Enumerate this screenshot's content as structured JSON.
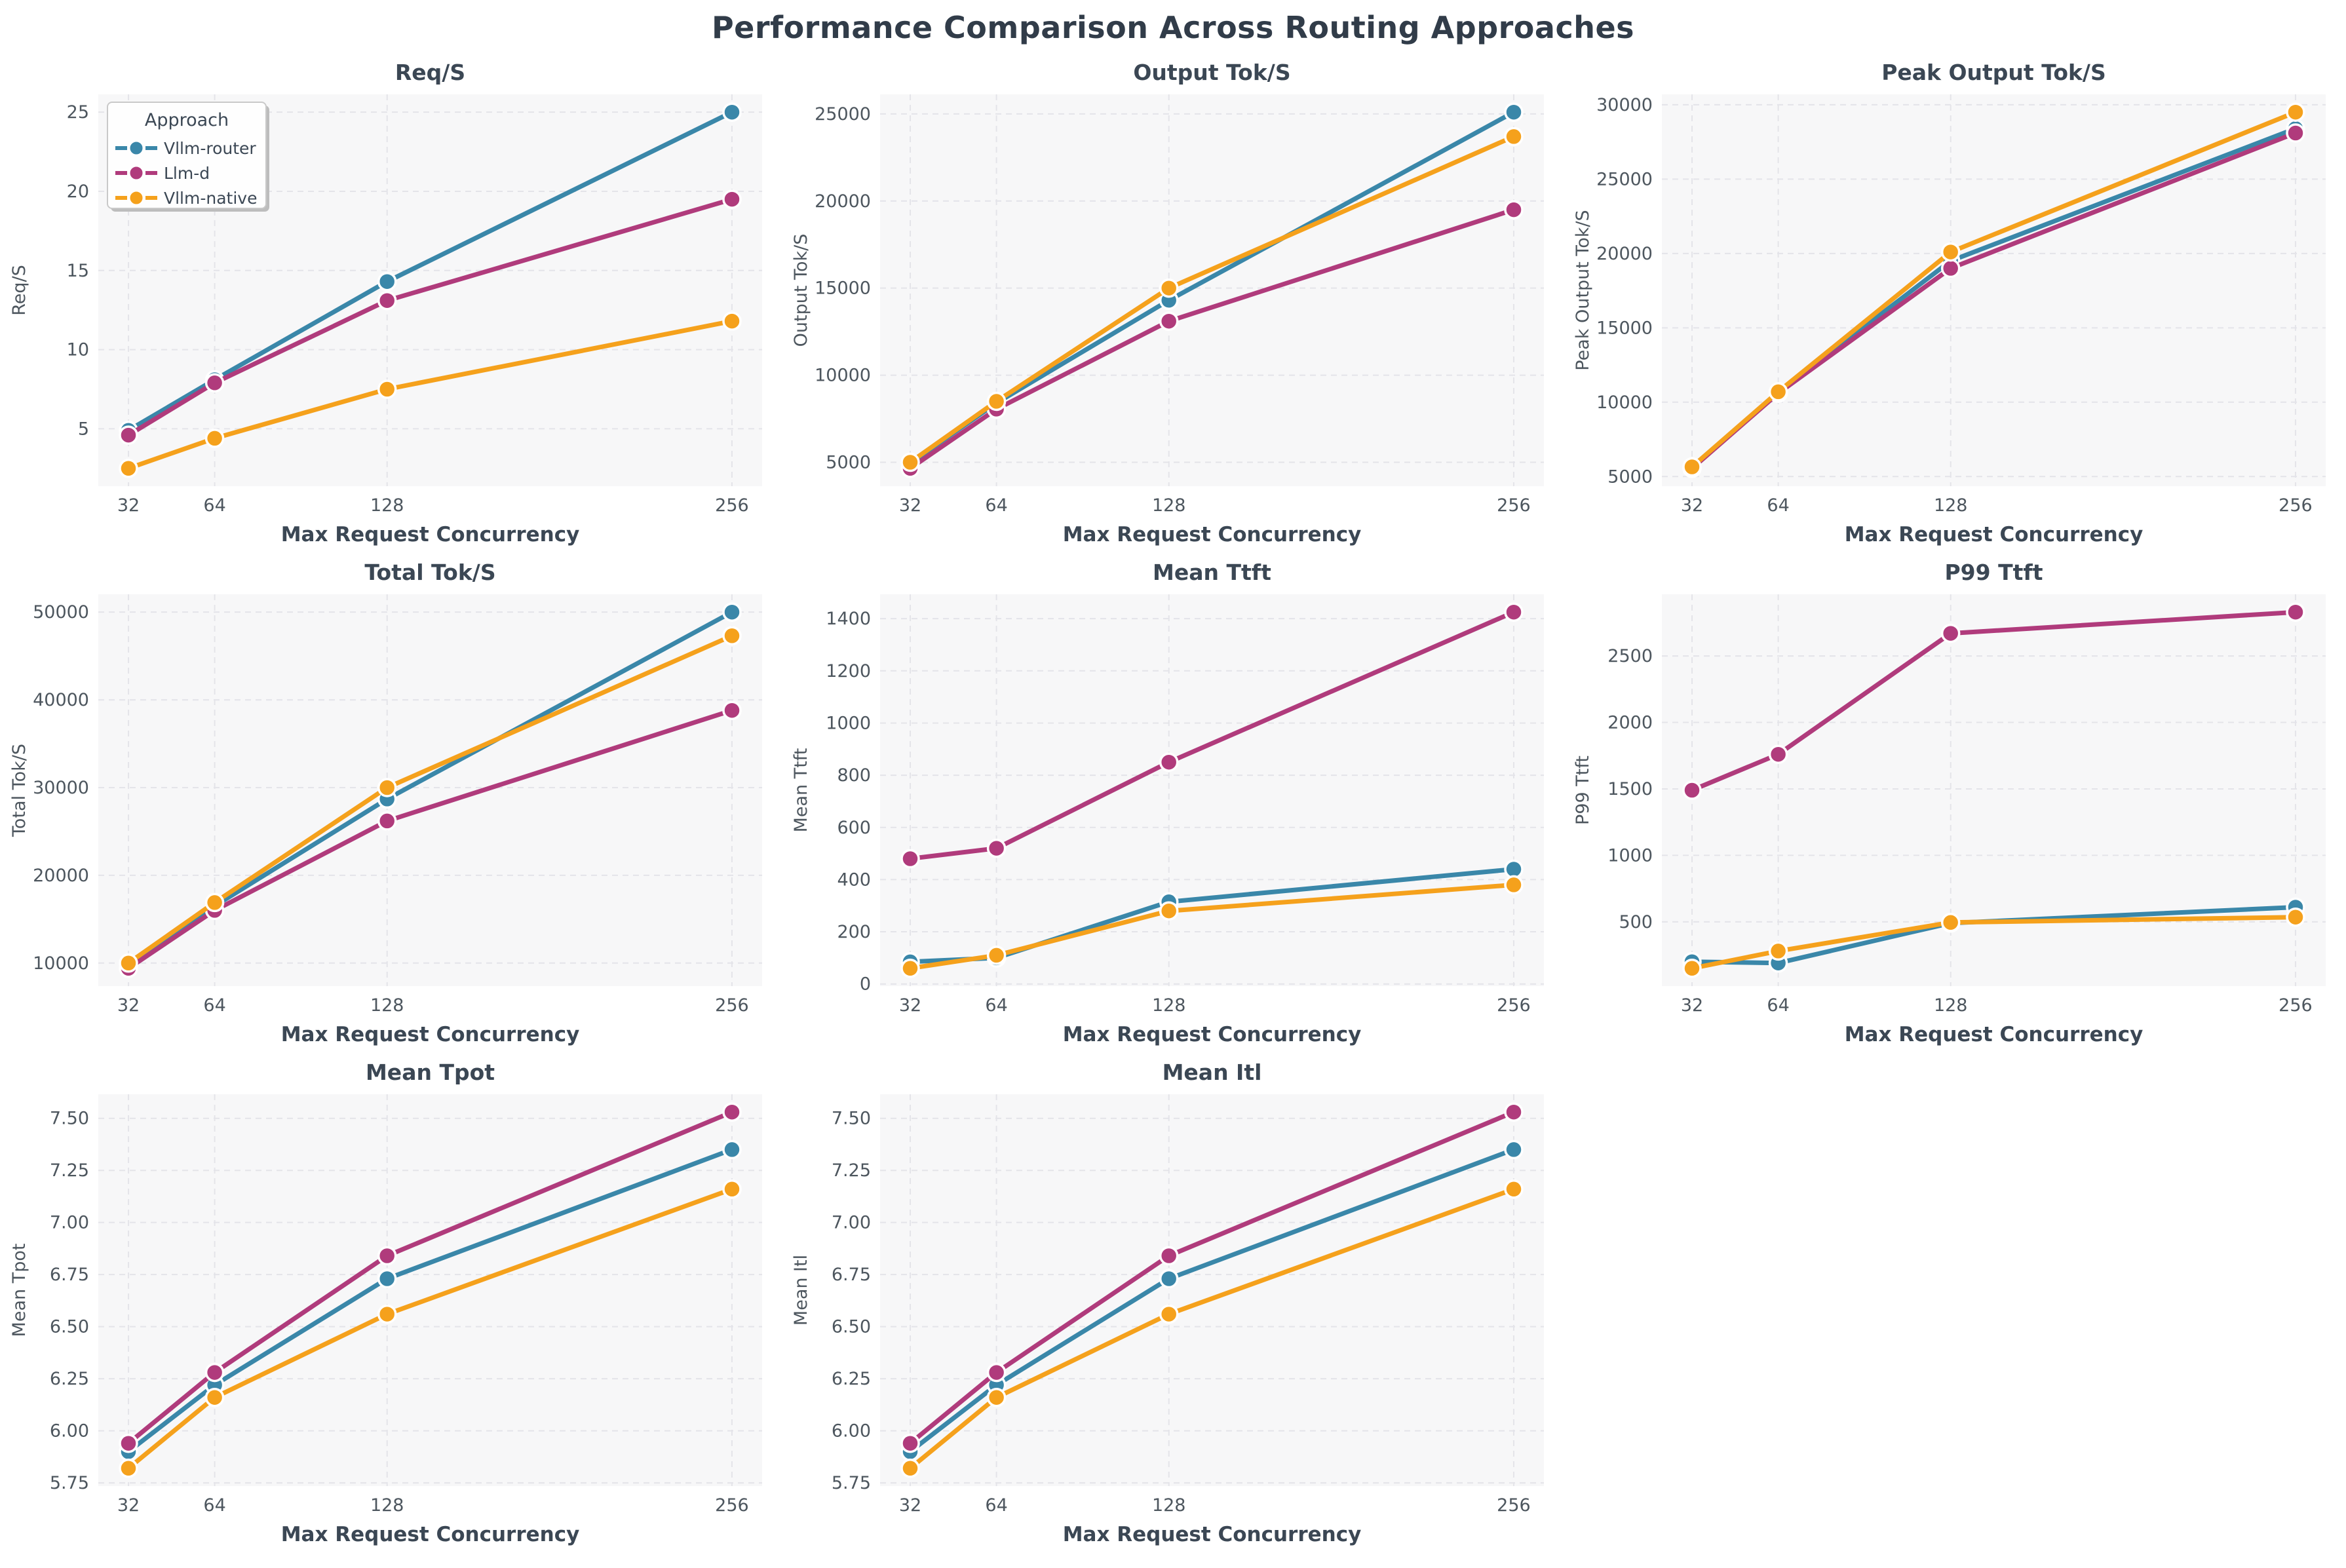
{
  "page": {
    "suptitle": "Performance Comparison Across Routing Approaches"
  },
  "x_axis": {
    "label": "Max Request Concurrency",
    "ticks": [
      32,
      64,
      128,
      256
    ],
    "tick_labels": [
      "32",
      "64",
      "128",
      "256"
    ]
  },
  "legend": {
    "title": "Approach",
    "entries": [
      "Vllm-router",
      "Llm-d",
      "Vllm-native"
    ]
  },
  "colors": {
    "series": {
      "Vllm-router": "#3a87a9",
      "Llm-d": "#b03b7c",
      "Vllm-native": "#f5a11c"
    },
    "suptitle": "#313c49",
    "subplot_title": "#3b4754",
    "axis_label": "#3b4754",
    "tick_label": "#4d565e",
    "plot_bg": "#f7f7f8",
    "grid": "#e4e4e9",
    "legend_bg": "#fefefe",
    "legend_border": "#c9c9c9",
    "legend_shadow": "#bdbdbd",
    "marker_edge": "#ffffff"
  },
  "chart_data": [
    {
      "type": "line",
      "title": "Req/S",
      "ylabel": "Req/S",
      "xlabel": "Max Request Concurrency",
      "x": [
        32,
        64,
        128,
        256
      ],
      "yticks": [
        5,
        10,
        15,
        20,
        25
      ],
      "ytick_labels": [
        "5",
        "10",
        "15",
        "20",
        "25"
      ],
      "show_legend": true,
      "series": [
        {
          "name": "Vllm-router",
          "values": [
            4.9,
            8.1,
            14.3,
            25.0
          ]
        },
        {
          "name": "Llm-d",
          "values": [
            4.6,
            7.9,
            13.1,
            19.5
          ]
        },
        {
          "name": "Vllm-native",
          "values": [
            2.5,
            4.4,
            7.5,
            11.8
          ]
        }
      ]
    },
    {
      "type": "line",
      "title": "Output Tok/S",
      "ylabel": "Output Tok/S",
      "xlabel": "Max Request Concurrency",
      "x": [
        32,
        64,
        128,
        256
      ],
      "yticks": [
        5000,
        10000,
        15000,
        20000,
        25000
      ],
      "ytick_labels": [
        "5000",
        "10000",
        "15000",
        "20000",
        "25000"
      ],
      "show_legend": false,
      "series": [
        {
          "name": "Vllm-router",
          "values": [
            4950,
            8400,
            14300,
            25100
          ]
        },
        {
          "name": "Llm-d",
          "values": [
            4650,
            8050,
            13100,
            19500
          ]
        },
        {
          "name": "Vllm-native",
          "values": [
            5000,
            8500,
            15000,
            23700
          ]
        }
      ]
    },
    {
      "type": "line",
      "title": "Peak Output Tok/S",
      "ylabel": "Peak Output Tok/S",
      "xlabel": "Max Request Concurrency",
      "x": [
        32,
        64,
        128,
        256
      ],
      "yticks": [
        5000,
        10000,
        15000,
        20000,
        25000,
        30000
      ],
      "ytick_labels": [
        "5000",
        "10000",
        "15000",
        "20000",
        "25000",
        "30000"
      ],
      "show_legend": false,
      "series": [
        {
          "name": "Vllm-router",
          "values": [
            5600,
            10650,
            19500,
            28400
          ]
        },
        {
          "name": "Llm-d",
          "values": [
            5550,
            10600,
            19000,
            28100
          ]
        },
        {
          "name": "Vllm-native",
          "values": [
            5650,
            10700,
            20100,
            29500
          ]
        }
      ]
    },
    {
      "type": "line",
      "title": "Total Tok/S",
      "ylabel": "Total Tok/S",
      "xlabel": "Max Request Concurrency",
      "x": [
        32,
        64,
        128,
        256
      ],
      "yticks": [
        10000,
        20000,
        30000,
        40000,
        50000
      ],
      "ytick_labels": [
        "10000",
        "20000",
        "30000",
        "40000",
        "50000"
      ],
      "show_legend": false,
      "series": [
        {
          "name": "Vllm-router",
          "values": [
            9900,
            16500,
            28700,
            50000
          ]
        },
        {
          "name": "Llm-d",
          "values": [
            9400,
            16000,
            26200,
            38800
          ]
        },
        {
          "name": "Vllm-native",
          "values": [
            10000,
            16900,
            30000,
            47300
          ]
        }
      ]
    },
    {
      "type": "line",
      "title": "Mean Ttft",
      "ylabel": "Mean Ttft",
      "xlabel": "Max Request Concurrency",
      "x": [
        32,
        64,
        128,
        256
      ],
      "yticks": [
        0,
        200,
        400,
        600,
        800,
        1000,
        1200,
        1400
      ],
      "ytick_labels": [
        "0",
        "200",
        "400",
        "600",
        "800",
        "1000",
        "1200",
        "1400"
      ],
      "show_legend": false,
      "series": [
        {
          "name": "Vllm-router",
          "values": [
            85,
            100,
            315,
            440
          ]
        },
        {
          "name": "Llm-d",
          "values": [
            480,
            520,
            850,
            1425
          ]
        },
        {
          "name": "Vllm-native",
          "values": [
            60,
            110,
            280,
            380
          ]
        }
      ]
    },
    {
      "type": "line",
      "title": "P99 Ttft",
      "ylabel": "P99 Ttft",
      "xlabel": "Max Request Concurrency",
      "x": [
        32,
        64,
        128,
        256
      ],
      "yticks": [
        500,
        1000,
        1500,
        2000,
        2500
      ],
      "ytick_labels": [
        "500",
        "1000",
        "1500",
        "2000",
        "2500"
      ],
      "show_legend": false,
      "series": [
        {
          "name": "Vllm-router",
          "values": [
            200,
            190,
            490,
            610
          ]
        },
        {
          "name": "Llm-d",
          "values": [
            1490,
            1760,
            2670,
            2830
          ]
        },
        {
          "name": "Vllm-native",
          "values": [
            150,
            280,
            495,
            535
          ]
        }
      ]
    },
    {
      "type": "line",
      "title": "Mean Tpot",
      "ylabel": "Mean Tpot",
      "xlabel": "Max Request Concurrency",
      "x": [
        32,
        64,
        128,
        256
      ],
      "yticks": [
        5.75,
        6.0,
        6.25,
        6.5,
        6.75,
        7.0,
        7.25,
        7.5
      ],
      "ytick_labels": [
        "5.75",
        "6.00",
        "6.25",
        "6.50",
        "6.75",
        "7.00",
        "7.25",
        "7.50"
      ],
      "show_legend": false,
      "series": [
        {
          "name": "Vllm-router",
          "values": [
            5.9,
            6.22,
            6.73,
            7.35
          ]
        },
        {
          "name": "Llm-d",
          "values": [
            5.94,
            6.28,
            6.84,
            7.53
          ]
        },
        {
          "name": "Vllm-native",
          "values": [
            5.82,
            6.16,
            6.56,
            7.16
          ]
        }
      ]
    },
    {
      "type": "line",
      "title": "Mean Itl",
      "ylabel": "Mean Itl",
      "xlabel": "Max Request Concurrency",
      "x": [
        32,
        64,
        128,
        256
      ],
      "yticks": [
        5.75,
        6.0,
        6.25,
        6.5,
        6.75,
        7.0,
        7.25,
        7.5
      ],
      "ytick_labels": [
        "5.75",
        "6.00",
        "6.25",
        "6.50",
        "6.75",
        "7.00",
        "7.25",
        "7.50"
      ],
      "show_legend": false,
      "series": [
        {
          "name": "Vllm-router",
          "values": [
            5.9,
            6.22,
            6.73,
            7.35
          ]
        },
        {
          "name": "Llm-d",
          "values": [
            5.94,
            6.28,
            6.84,
            7.53
          ]
        },
        {
          "name": "Vllm-native",
          "values": [
            5.82,
            6.16,
            6.56,
            7.16
          ]
        }
      ]
    }
  ]
}
